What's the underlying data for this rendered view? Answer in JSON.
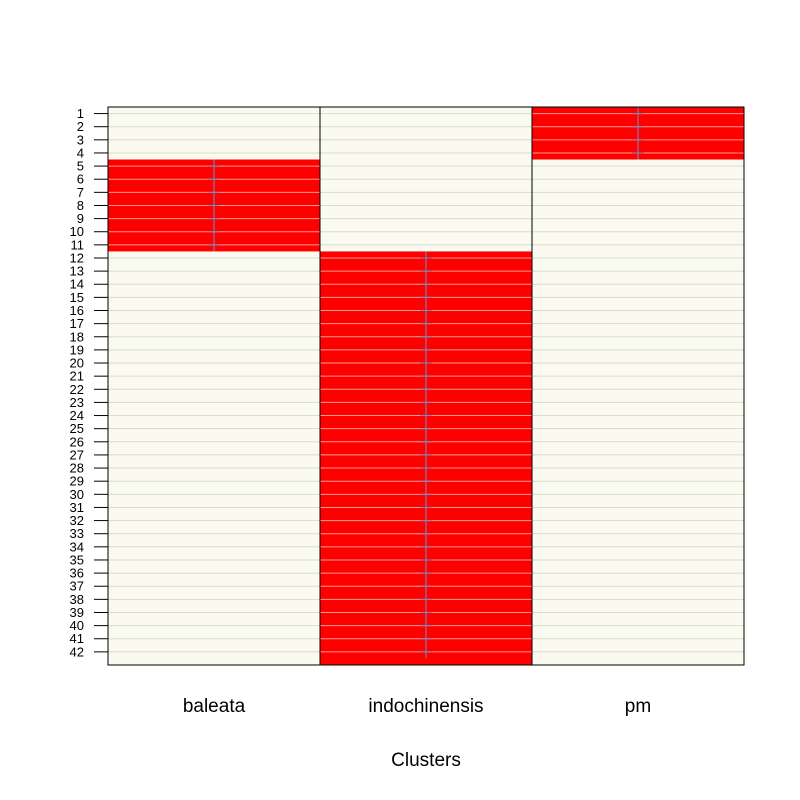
{
  "chart_data": {
    "type": "heatmap",
    "title": "",
    "xlabel": "Clusters",
    "ylabel": "",
    "categories": [
      "baleata",
      "indochinensis",
      "pm"
    ],
    "rows": [
      "1",
      "2",
      "3",
      "4",
      "5",
      "6",
      "7",
      "8",
      "9",
      "10",
      "11",
      "12",
      "13",
      "14",
      "15",
      "16",
      "17",
      "18",
      "19",
      "20",
      "21",
      "22",
      "23",
      "24",
      "25",
      "26",
      "27",
      "28",
      "29",
      "30",
      "31",
      "32",
      "33",
      "34",
      "35",
      "36",
      "37",
      "38",
      "39",
      "40",
      "41",
      "42"
    ],
    "membership": [
      {
        "cluster": "pm",
        "rows_from": 1,
        "rows_to": 4
      },
      {
        "cluster": "baleata",
        "rows_from": 5,
        "rows_to": 11
      },
      {
        "cluster": "indochinensis",
        "rows_from": 12,
        "rows_to": 42
      }
    ],
    "colors": {
      "member_fill": "#ff0000",
      "background_fill": "#fafaf0",
      "row_line": "#d8dcc8",
      "member_row_line": "#ff9999",
      "marker": "#6f8fc0",
      "border": "#000000"
    }
  }
}
